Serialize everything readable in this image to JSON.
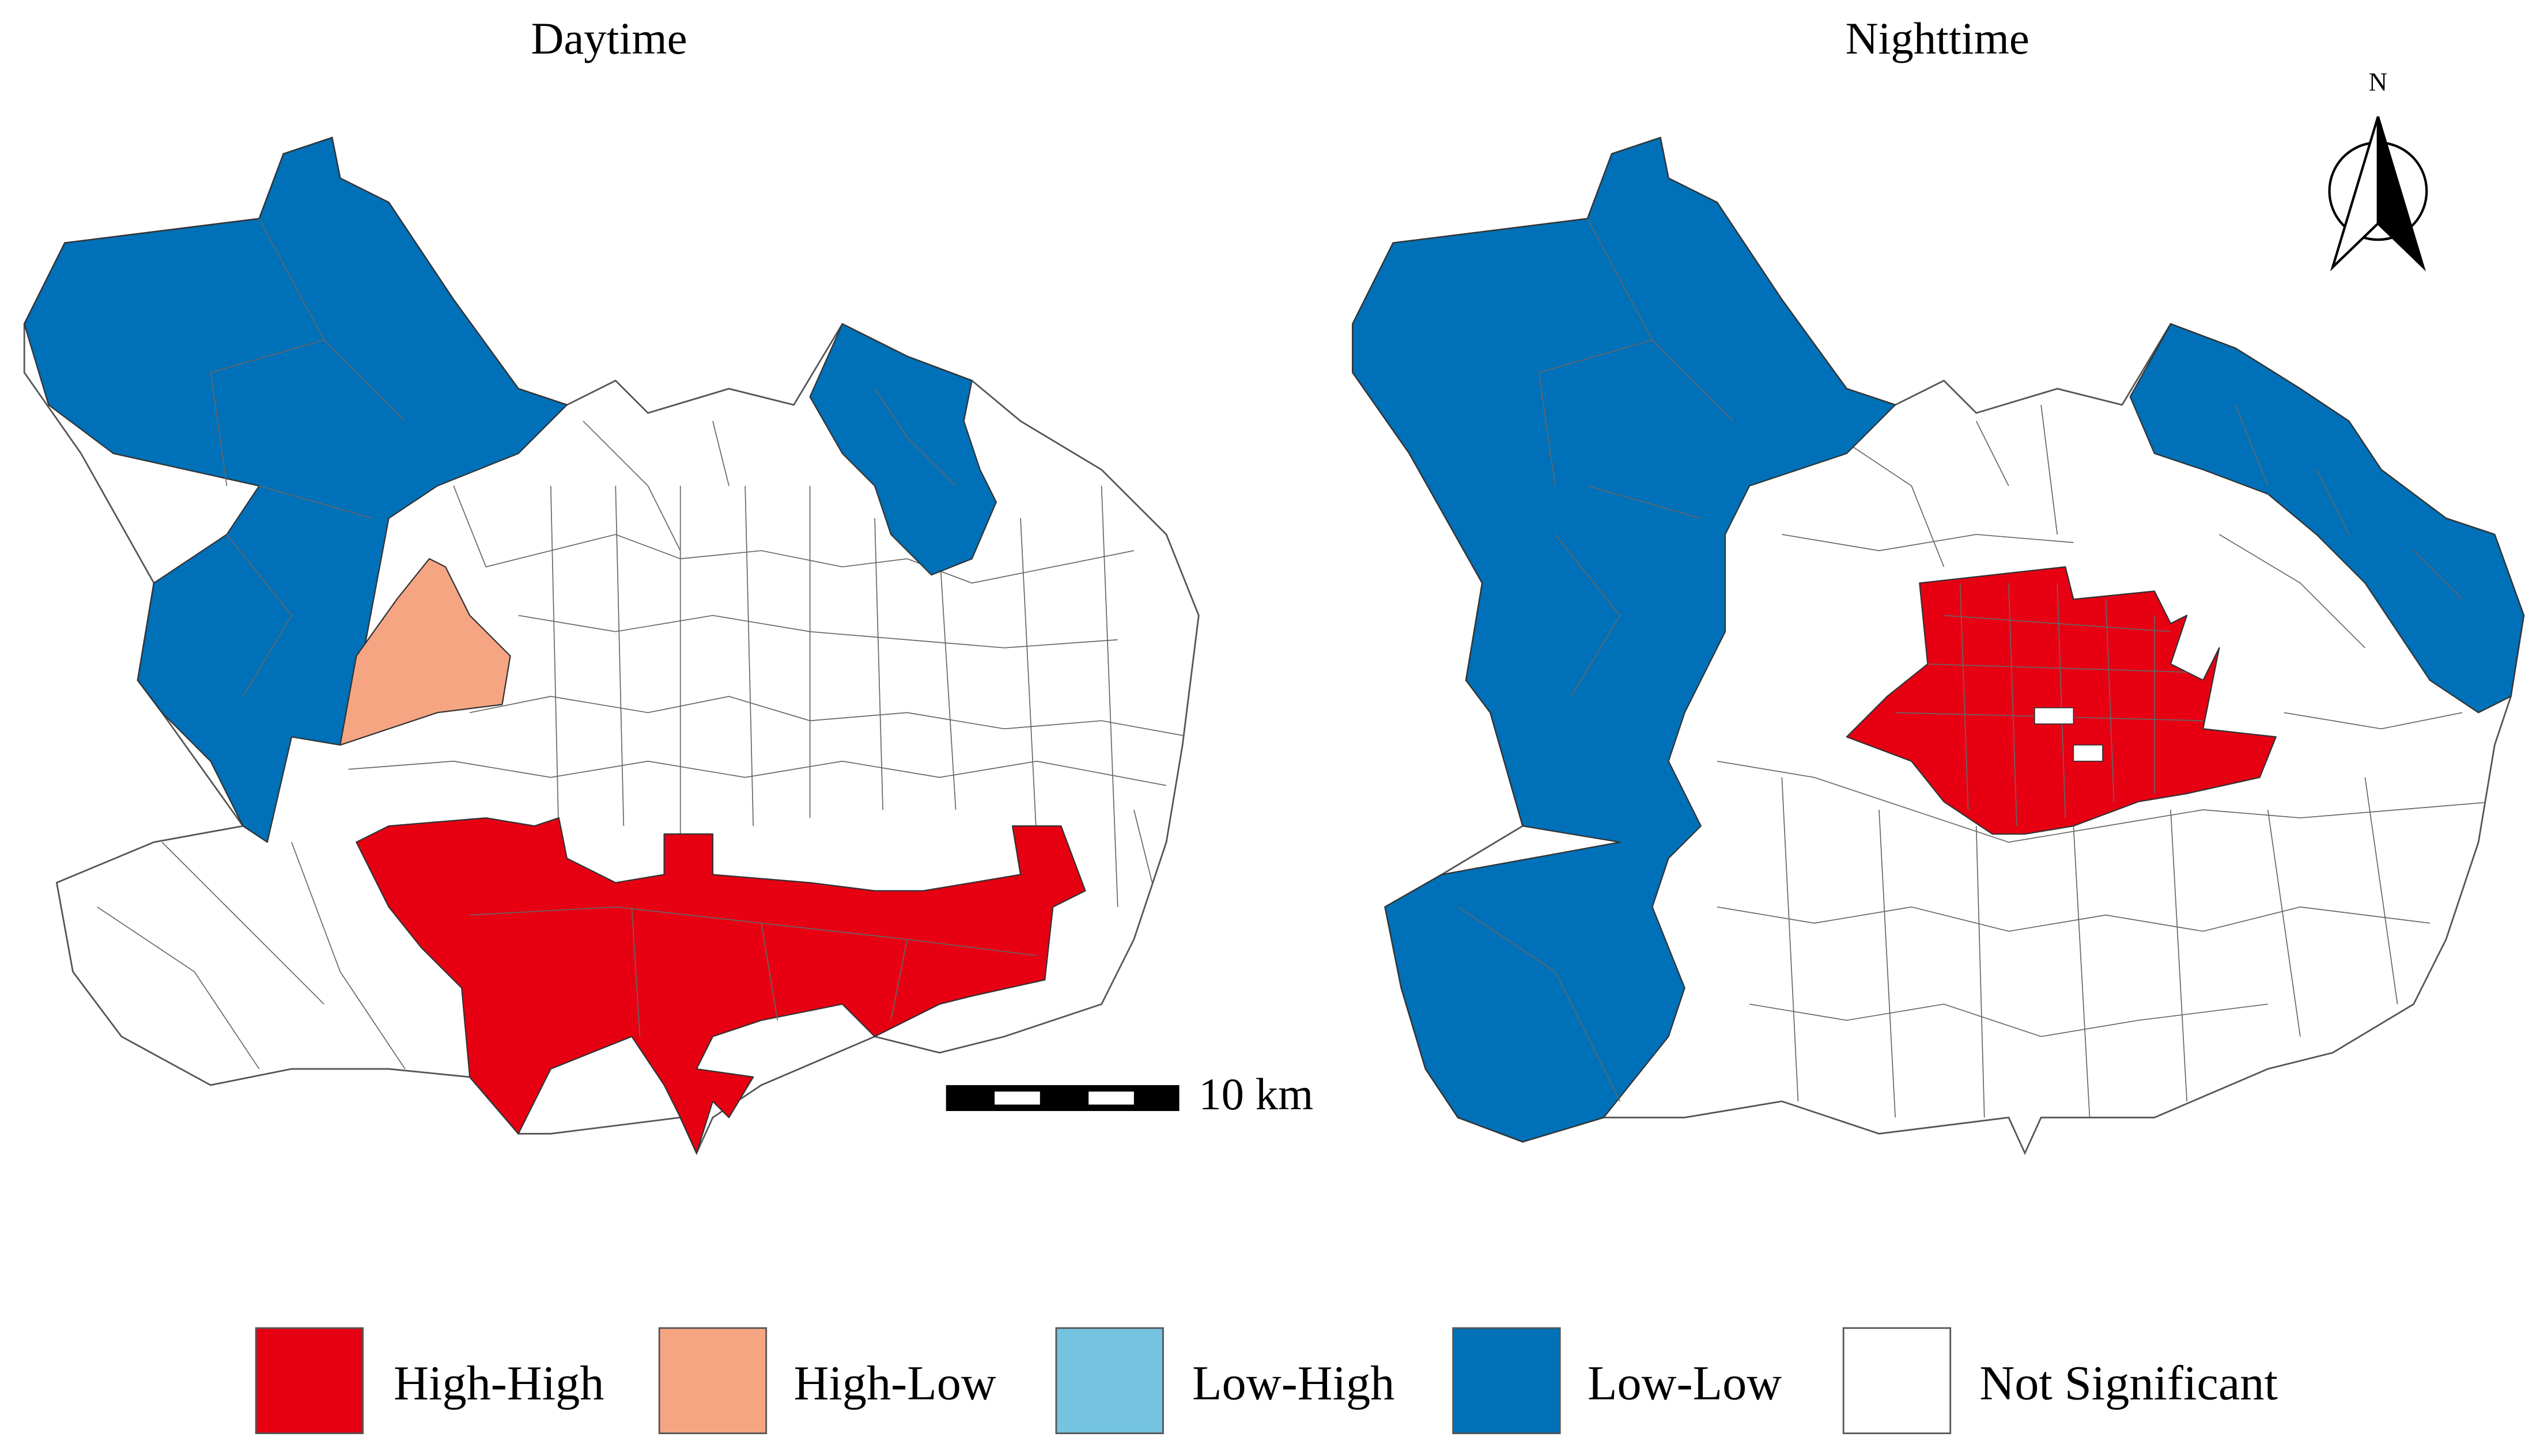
{
  "titles": {
    "daytime": "Daytime",
    "nighttime": "Nighttime"
  },
  "north_arrow": "N",
  "scale_bar": "10 km",
  "legend": [
    {
      "label": "High-High",
      "color": "#e60012"
    },
    {
      "label": "High-Low",
      "color": "#f6a582"
    },
    {
      "label": "Low-High",
      "color": "#74c3e0"
    },
    {
      "label": "Low-Low",
      "color": "#0070b8"
    },
    {
      "label": "Not Significant",
      "color": "#ffffff"
    }
  ]
}
